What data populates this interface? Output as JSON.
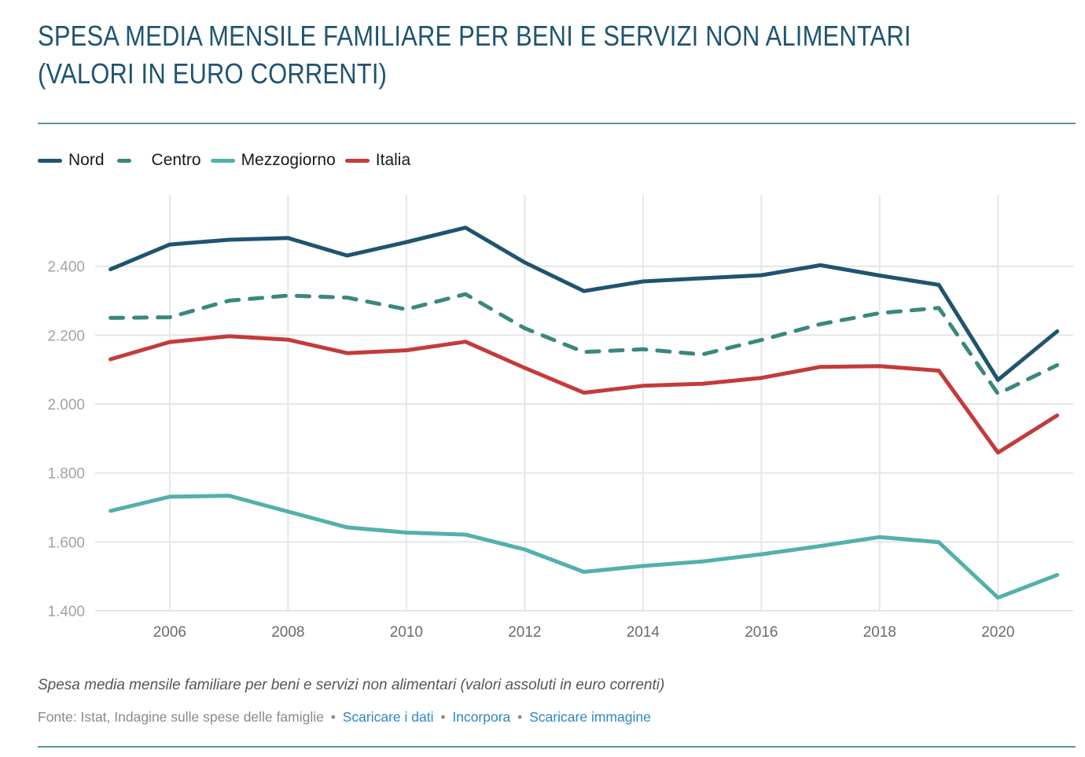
{
  "header": {
    "title": "SPESA MEDIA MENSILE FAMILIARE PER BENI E SERVIZI NON ALIMENTARI (VALORI IN EURO CORRENTI)"
  },
  "legend": [
    {
      "label": "Nord",
      "color": "#1f5470",
      "style": "solid"
    },
    {
      "label": "Centro",
      "color": "#3b877e",
      "style": "dashed"
    },
    {
      "label": "Mezzogiorno",
      "color": "#52b1aa",
      "style": "solid"
    },
    {
      "label": "Italia",
      "color": "#c43a3a",
      "style": "solid"
    }
  ],
  "footer": {
    "caption": "Spesa media mensile familiare per beni e servizi non alimentari (valori assoluti in euro correnti)",
    "source": "Fonte: Istat, Indagine sulle spese delle famiglie",
    "separator": "•",
    "links": [
      "Scaricare i dati",
      "Incorpora",
      "Scaricare immagine"
    ]
  },
  "chart_data": {
    "type": "line",
    "title": "SPESA MEDIA MENSILE FAMILIARE PER BENI E SERVIZI NON ALIMENTARI (VALORI IN EURO CORRENTI)",
    "xlabel": "",
    "ylabel": "",
    "x": [
      2005,
      2006,
      2007,
      2008,
      2009,
      2010,
      2011,
      2012,
      2013,
      2014,
      2015,
      2016,
      2017,
      2018,
      2019,
      2020,
      2021
    ],
    "xlim": [
      2005,
      2021
    ],
    "ylim": [
      1400,
      2560
    ],
    "x_ticks": [
      2006,
      2008,
      2010,
      2012,
      2014,
      2016,
      2018,
      2020
    ],
    "x_tick_labels": [
      "2006",
      "2008",
      "2010",
      "2012",
      "2014",
      "2016",
      "2018",
      "2020"
    ],
    "y_ticks": [
      1400,
      1600,
      1800,
      2000,
      2200,
      2400
    ],
    "y_tick_labels": [
      "1.400",
      "1.600",
      "1.800",
      "2.000",
      "2.200",
      "2.400"
    ],
    "grid": true,
    "legend_position": "top-left",
    "series": [
      {
        "name": "Nord",
        "color": "#1f5470",
        "dashed": false,
        "values": [
          2391,
          2463,
          2477,
          2482,
          2431,
          2470,
          2512,
          2411,
          2328,
          2356,
          2365,
          2374,
          2403,
          2373,
          2346,
          2070,
          2211
        ]
      },
      {
        "name": "Centro",
        "color": "#3b877e",
        "dashed": true,
        "values": [
          2250,
          2252,
          2300,
          2315,
          2309,
          2275,
          2319,
          2220,
          2151,
          2159,
          2144,
          2186,
          2232,
          2264,
          2279,
          2030,
          2113
        ]
      },
      {
        "name": "Mezzogiorno",
        "color": "#52b1aa",
        "dashed": false,
        "values": [
          1690,
          1731,
          1734,
          1688,
          1642,
          1627,
          1621,
          1578,
          1513,
          1530,
          1543,
          1564,
          1588,
          1614,
          1599,
          1438,
          1504
        ]
      },
      {
        "name": "Italia",
        "color": "#c43a3a",
        "dashed": false,
        "values": [
          2130,
          2180,
          2197,
          2187,
          2148,
          2156,
          2181,
          2105,
          2033,
          2053,
          2059,
          2076,
          2108,
          2110,
          2097,
          1859,
          1967
        ]
      }
    ]
  }
}
